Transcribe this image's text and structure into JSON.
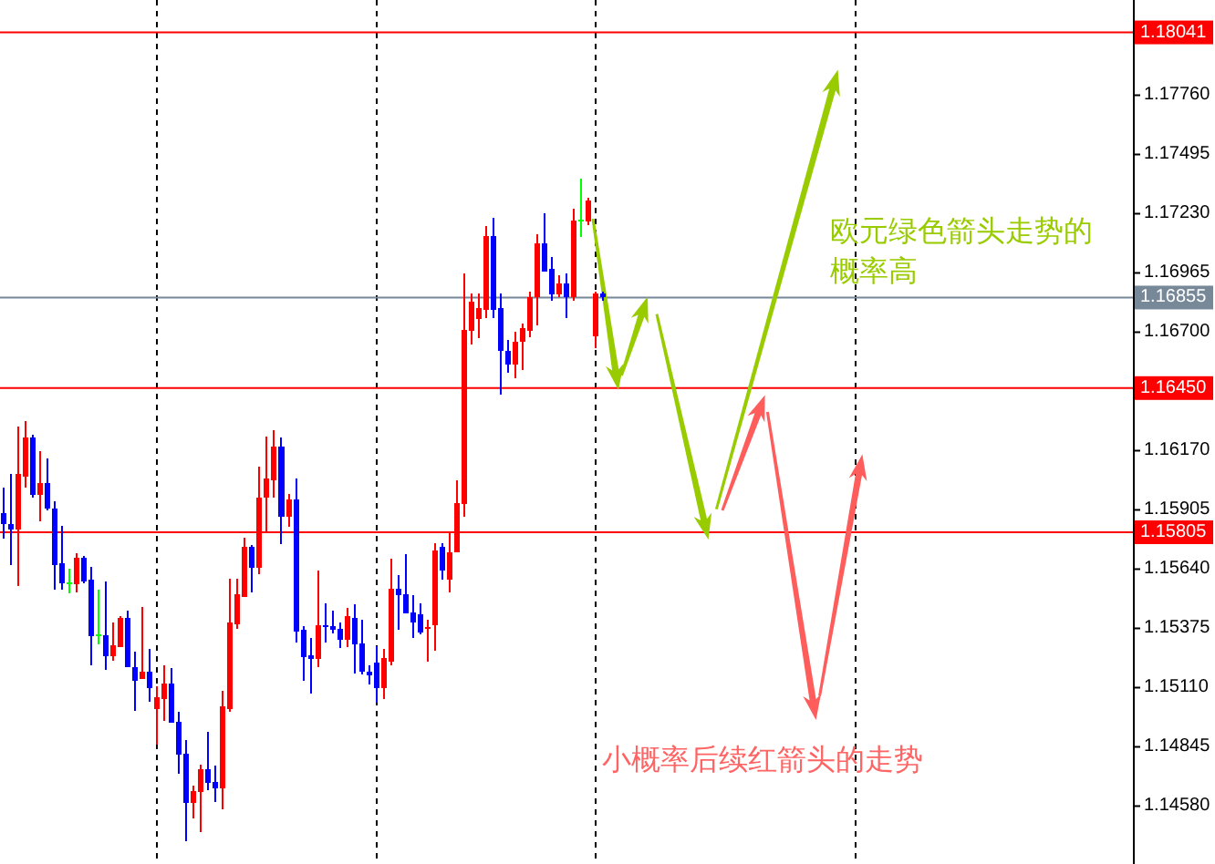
{
  "chart_data": {
    "type": "candlestick",
    "categories": [
      null,
      null,
      null,
      null,
      null,
      null,
      null,
      null,
      null,
      null,
      null,
      null,
      null,
      null,
      null,
      null,
      null,
      null,
      null,
      null,
      null,
      null,
      null,
      null,
      null,
      null,
      null,
      null,
      null,
      null,
      null,
      null,
      null,
      null,
      null,
      null,
      null,
      null,
      null,
      null,
      null,
      null,
      null,
      null,
      null,
      null,
      null,
      null,
      null,
      null,
      null,
      null,
      null,
      null,
      null,
      null,
      null,
      null,
      null,
      null,
      null,
      null,
      null,
      null,
      null,
      null,
      null,
      null,
      null,
      null,
      null,
      null,
      null,
      null,
      null,
      null,
      null,
      null,
      null,
      null,
      null,
      null,
      null,
      null,
      null,
      null,
      null,
      null,
      null,
      null,
      null,
      null,
      null,
      null,
      null,
      null,
      null,
      null,
      null,
      null,
      null,
      null,
      null,
      null,
      null,
      null,
      null,
      null,
      null,
      null,
      null,
      null,
      null,
      null,
      null,
      null,
      null,
      null,
      null,
      null,
      null,
      null,
      null,
      null,
      null,
      null,
      null,
      null,
      null,
      null,
      null,
      null,
      null,
      null,
      null,
      null,
      null,
      null,
      null,
      null,
      null,
      null,
      null,
      null,
      null,
      null,
      null,
      null,
      null,
      null,
      null,
      null,
      null,
      null,
      null
    ],
    "ohlc": [
      [
        1.1589,
        1.16004,
        1.15776,
        1.15841
      ],
      [
        1.15841,
        1.16066,
        1.15659,
        1.15816
      ],
      [
        1.15816,
        1.16276,
        1.15564,
        1.16066
      ],
      [
        1.16053,
        1.16303,
        1.16004,
        1.1623
      ],
      [
        1.1623,
        1.16243,
        1.15958,
        1.15971
      ],
      [
        1.15971,
        1.16167,
        1.15854,
        1.16026
      ],
      [
        1.16026,
        1.16134,
        1.15903,
        1.15912
      ],
      [
        1.15912,
        1.15944,
        1.15547,
        1.15659
      ],
      [
        1.15667,
        1.15835,
        1.15547,
        1.15577
      ],
      [
        1.15577,
        1.1564,
        1.15531,
        1.15577
      ],
      [
        1.15572,
        1.15713,
        1.15536,
        1.15691
      ],
      [
        1.15691,
        1.15697,
        1.15577,
        1.15585
      ],
      [
        1.15591,
        1.15651,
        1.1521,
        1.15341
      ],
      [
        1.15346,
        1.15547,
        1.15303,
        1.15346
      ],
      [
        1.15346,
        1.15585,
        1.15189,
        1.15251
      ],
      [
        1.15251,
        1.15401,
        1.15232,
        1.153
      ],
      [
        1.15292,
        1.15428,
        1.15292,
        1.15422
      ],
      [
        1.15422,
        1.15455,
        1.15202,
        1.15202
      ],
      [
        1.15202,
        1.1527,
        1.15006,
        1.1514
      ],
      [
        1.15148,
        1.15471,
        1.15148,
        1.15183
      ],
      [
        1.15183,
        1.15284,
        1.15047,
        1.15107
      ],
      [
        1.15015,
        1.15115,
        1.14857,
        1.15066
      ],
      [
        1.15058,
        1.1521,
        1.1496,
        1.15129
      ],
      [
        1.15129,
        1.15197,
        1.14952,
        1.14952
      ],
      [
        1.14958,
        1.15001,
        1.14726,
        1.14811
      ],
      [
        1.14816,
        1.14876,
        1.14422,
        1.14593
      ],
      [
        1.14593,
        1.14672,
        1.14525,
        1.14648
      ],
      [
        1.14645,
        1.14767,
        1.14463,
        1.14745
      ],
      [
        1.14745,
        1.14911,
        1.14653,
        1.14683
      ],
      [
        1.14688,
        1.14762,
        1.14599,
        1.14661
      ],
      [
        1.14661,
        1.15096,
        1.14566,
        1.15025
      ],
      [
        1.15015,
        1.15596,
        1.15001,
        1.15401
      ],
      [
        1.15392,
        1.15596,
        1.15373,
        1.15528
      ],
      [
        1.15515,
        1.15781,
        1.15515,
        1.1574
      ],
      [
        1.1574,
        1.15748,
        1.15536,
        1.15645
      ],
      [
        1.15645,
        1.16099,
        1.15618,
        1.15958
      ],
      [
        1.15958,
        1.16235,
        1.15803,
        1.16045
      ],
      [
        1.16039,
        1.16262,
        1.15958,
        1.16189
      ],
      [
        1.16189,
        1.1623,
        1.15754,
        1.15876
      ],
      [
        1.15876,
        1.15977,
        1.1583,
        1.1595
      ],
      [
        1.1595,
        1.16047,
        1.15311,
        1.1536
      ],
      [
        1.15368,
        1.15387,
        1.1514,
        1.15246
      ],
      [
        1.15254,
        1.15333,
        1.15085,
        1.15237
      ],
      [
        1.15237,
        1.15632,
        1.15202,
        1.1539
      ],
      [
        1.1539,
        1.15488,
        1.15311,
        1.15379
      ],
      [
        1.15384,
        1.15455,
        1.15354,
        1.15368
      ],
      [
        1.15373,
        1.15401,
        1.15286,
        1.15324
      ],
      [
        1.15324,
        1.15466,
        1.15292,
        1.1543
      ],
      [
        1.15422,
        1.15482,
        1.15175,
        1.15303
      ],
      [
        1.15308,
        1.15414,
        1.15167,
        1.15183
      ],
      [
        1.15183,
        1.1521,
        1.15123,
        1.15164
      ],
      [
        1.15221,
        1.15297,
        1.15042,
        1.15107
      ],
      [
        1.15107,
        1.15284,
        1.15058,
        1.15243
      ],
      [
        1.15227,
        1.15686,
        1.1521,
        1.15553
      ],
      [
        1.15553,
        1.15612,
        1.15368,
        1.15523
      ],
      [
        1.15528,
        1.15708,
        1.15441,
        1.15441
      ],
      [
        1.15447,
        1.15523,
        1.15333,
        1.15401
      ],
      [
        1.15439,
        1.15488,
        1.15349,
        1.15357
      ],
      [
        1.15373,
        1.15414,
        1.15227,
        1.15381
      ],
      [
        1.1539,
        1.15757,
        1.15276,
        1.15724
      ],
      [
        1.1574,
        1.15757,
        1.15594,
        1.15634
      ],
      [
        1.15594,
        1.15806,
        1.15536,
        1.15716
      ],
      [
        1.15716,
        1.16039,
        1.15716,
        1.15936
      ],
      [
        1.15931,
        1.16963,
        1.15876,
        1.16711
      ],
      [
        1.16705,
        1.16874,
        1.16645,
        1.16836
      ],
      [
        1.1676,
        1.16874,
        1.16673,
        1.16809
      ],
      [
        1.168,
        1.17173,
        1.16765,
        1.17132
      ],
      [
        1.17132,
        1.17213,
        1.16765,
        1.168
      ],
      [
        1.16806,
        1.16874,
        1.1642,
        1.16618
      ],
      [
        1.16618,
        1.16664,
        1.1652,
        1.16556
      ],
      [
        1.16556,
        1.167,
        1.16493,
        1.16659
      ],
      [
        1.16656,
        1.16738,
        1.16529,
        1.16719
      ],
      [
        1.16705,
        1.16882,
        1.16678,
        1.16855
      ],
      [
        1.16855,
        1.1714,
        1.16732,
        1.17099
      ],
      [
        1.17099,
        1.1723,
        1.16972,
        1.16972
      ],
      [
        1.16982,
        1.17037,
        1.16841,
        1.16868
      ],
      [
        1.16868,
        1.16955,
        1.16855,
        1.16917
      ],
      [
        1.16917,
        1.16963,
        1.16765,
        1.16855
      ],
      [
        1.16855,
        1.17254,
        1.16841,
        1.172
      ],
      [
        1.172,
        1.17385,
        1.17127,
        1.172
      ],
      [
        1.17194,
        1.17303,
        1.17181,
        1.1729
      ],
      [
        1.16683,
        1.16882,
        1.16629,
        1.16874
      ],
      [
        1.16874,
        1.16882,
        1.16841,
        1.16855
      ],
      null,
      null,
      null,
      null,
      null,
      null,
      null,
      null,
      null,
      null,
      null,
      null,
      null,
      null,
      null,
      null,
      null,
      null,
      null,
      null,
      null,
      null,
      null,
      null,
      null,
      null,
      null,
      null,
      null,
      null,
      null,
      null,
      null,
      null,
      null,
      null,
      null,
      null,
      null,
      null,
      null,
      null,
      null,
      null,
      null,
      null,
      null,
      null,
      null,
      null,
      null,
      null,
      null,
      null,
      null,
      null,
      null,
      null,
      null,
      null,
      null,
      null,
      null,
      null,
      null,
      null,
      null,
      null,
      null,
      null,
      null,
      null
    ],
    "colors": [
      "#0000ff",
      "#0000ff",
      "#ff0000",
      "#ff0000",
      "#0000ff",
      "#ff0000",
      "#0000ff",
      "#0000ff",
      "#0000ff",
      "#00ff00",
      "#ff0000",
      "#0000ff",
      "#0000ff",
      "#00ff00",
      "#0000ff",
      "#ff0000",
      "#ff0000",
      "#0000ff",
      "#0000ff",
      "#ff0000",
      "#0000ff",
      "#ff0000",
      "#ff0000",
      "#0000ff",
      "#0000ff",
      "#0000ff",
      "#ff0000",
      "#ff0000",
      "#0000ff",
      "#0000ff",
      "#ff0000",
      "#ff0000",
      "#ff0000",
      "#ff0000",
      "#0000ff",
      "#ff0000",
      "#ff0000",
      "#ff0000",
      "#0000ff",
      "#ff0000",
      "#0000ff",
      "#0000ff",
      "#0000ff",
      "#ff0000",
      "#0000ff",
      "#0000ff",
      "#0000ff",
      "#ff0000",
      "#0000ff",
      "#0000ff",
      "#0000ff",
      "#0000ff",
      "#ff0000",
      "#ff0000",
      "#0000ff",
      "#0000ff",
      "#0000ff",
      "#0000ff",
      "#ff0000",
      "#ff0000",
      "#0000ff",
      "#ff0000",
      "#ff0000",
      "#ff0000",
      "#ff0000",
      "#ff0000",
      "#ff0000",
      "#0000ff",
      "#0000ff",
      "#0000ff",
      "#ff0000",
      "#ff0000",
      "#ff0000",
      "#ff0000",
      "#0000ff",
      "#0000ff",
      "#ff0000",
      "#0000ff",
      "#ff0000",
      "#00ff00",
      "#ff0000",
      "#ff0000",
      "#0000ff",
      null,
      null,
      null,
      null,
      null,
      null,
      null,
      null,
      null,
      null,
      null,
      null,
      null,
      null,
      null,
      null,
      null,
      null,
      null,
      null,
      null,
      null,
      null,
      null,
      null,
      null,
      null,
      null,
      null,
      null,
      null,
      null,
      null,
      null,
      null,
      null,
      null,
      null,
      null,
      null,
      null,
      null,
      null,
      null,
      null,
      null,
      null,
      null,
      null,
      null,
      null,
      null,
      null,
      null,
      null,
      null,
      null,
      null,
      null,
      null,
      null,
      null,
      null,
      null,
      null,
      null,
      null,
      null,
      null,
      null,
      null,
      null
    ],
    "ylim": [
      1.14321,
      1.18186
    ],
    "yticks": [
      {
        "value": 1.1776,
        "label": "1.17760"
      },
      1.17495,
      {
        "value": 1.1723,
        "label": "1.17230"
      },
      1.16965,
      {
        "value": 1.167,
        "label": "1.16700"
      },
      {
        "value": 1.1617,
        "label": "1.16170"
      },
      1.15905,
      {
        "value": 1.1564,
        "label": "1.15640"
      },
      1.15375,
      {
        "value": 1.1511,
        "label": "1.15110"
      },
      1.14845,
      {
        "value": 1.1458,
        "label": "1.14580"
      }
    ],
    "ref_lines": [
      {
        "axis": "y",
        "value": 1.18041,
        "label": "1.18041",
        "color": "#ff0000"
      },
      {
        "axis": "y",
        "value": 1.16855,
        "label": "1.16855",
        "color": "#778899"
      },
      {
        "axis": "y",
        "value": 1.1645,
        "label": "1.16450",
        "color": "#ff0000"
      },
      {
        "axis": "y",
        "value": 1.15805,
        "label": "1.15805",
        "color": "#ff0000"
      }
    ],
    "annotations": [
      "欧元绿色箭头走势的概率高",
      "小概率后续红箭头的走势"
    ],
    "tick_labels": "y"
  }
}
